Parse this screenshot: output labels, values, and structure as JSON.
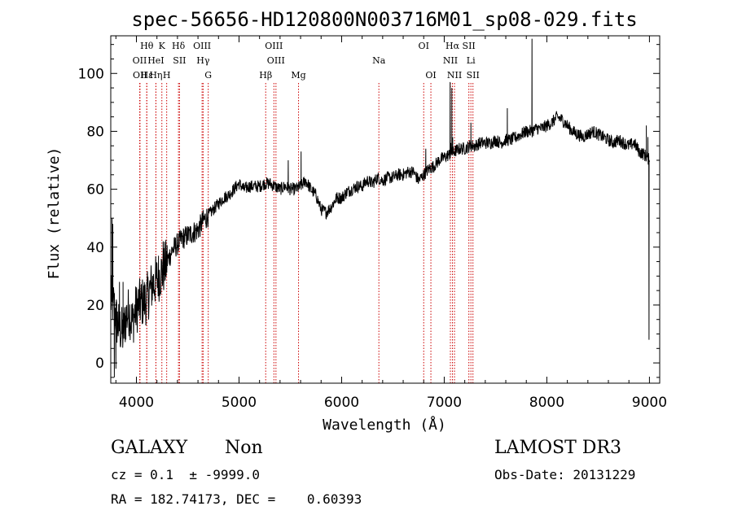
{
  "chart_data": {
    "type": "line",
    "title": "spec-56656-HD120800N003716M01_sp08-029.fits",
    "xlabel": "Wavelength (Å)",
    "ylabel": "Flux (relative)",
    "xlim": [
      3750,
      9100
    ],
    "ylim": [
      -7,
      113
    ],
    "xticks": [
      4000,
      5000,
      6000,
      7000,
      8000,
      9000
    ],
    "yticks": [
      0,
      20,
      40,
      60,
      80,
      100
    ],
    "grid": false,
    "line_color": "#000000",
    "marker_color": "#cc0000",
    "spectrum_anchors": {
      "x": [
        3750,
        3780,
        3810,
        3840,
        3870,
        3900,
        3930,
        3960,
        3990,
        4020,
        4060,
        4100,
        4140,
        4180,
        4220,
        4260,
        4300,
        4350,
        4400,
        4450,
        4500,
        4550,
        4600,
        4650,
        4700,
        4750,
        4800,
        4850,
        4900,
        4950,
        5000,
        5050,
        5100,
        5150,
        5200,
        5250,
        5300,
        5350,
        5400,
        5450,
        5500,
        5550,
        5600,
        5650,
        5700,
        5750,
        5800,
        5850,
        5900,
        5950,
        6000,
        6050,
        6100,
        6150,
        6200,
        6250,
        6300,
        6350,
        6400,
        6450,
        6500,
        6550,
        6600,
        6650,
        6700,
        6750,
        6800,
        6850,
        6900,
        6950,
        7000,
        7050,
        7100,
        7150,
        7200,
        7250,
        7300,
        7350,
        7400,
        7450,
        7500,
        7550,
        7600,
        7650,
        7700,
        7750,
        7800,
        7850,
        7900,
        7950,
        8000,
        8050,
        8100,
        8150,
        8200,
        8250,
        8300,
        8350,
        8400,
        8450,
        8500,
        8550,
        8600,
        8650,
        8700,
        8750,
        8800,
        8850,
        8900,
        8950,
        9000
      ],
      "y": [
        22,
        20,
        14,
        12,
        10,
        16,
        18,
        14,
        18,
        20,
        21,
        22,
        26,
        28,
        30,
        32,
        35,
        39,
        41,
        43,
        44,
        45,
        46,
        49,
        51,
        53,
        55,
        57,
        58,
        60,
        62,
        60,
        61,
        61,
        61,
        62,
        62,
        61,
        60,
        61,
        60,
        60,
        61,
        63,
        60,
        58,
        53,
        52,
        54,
        57,
        57,
        59,
        60,
        61,
        61,
        63,
        62,
        64,
        63,
        64,
        64,
        65,
        65,
        66,
        66,
        63,
        65,
        67,
        68,
        70,
        71,
        72,
        73,
        74,
        74,
        75,
        75,
        76,
        76,
        76,
        77,
        76,
        77,
        77,
        78,
        79,
        80,
        80,
        81,
        81,
        82,
        83,
        85,
        84,
        82,
        80,
        79,
        78,
        79,
        80,
        79,
        78,
        77,
        76,
        77,
        76,
        75,
        76,
        73,
        72,
        70
      ]
    },
    "spectrum_spikes": [
      {
        "x": 3762,
        "y": 50
      },
      {
        "x": 3770,
        "y": 48
      },
      {
        "x": 3785,
        "y": -5
      },
      {
        "x": 3800,
        "y": -2
      },
      {
        "x": 3835,
        "y": 28
      },
      {
        "x": 3870,
        "y": 28
      },
      {
        "x": 4215,
        "y": 37
      },
      {
        "x": 4260,
        "y": 42
      },
      {
        "x": 5605,
        "y": 73
      },
      {
        "x": 5480,
        "y": 70
      },
      {
        "x": 6820,
        "y": 74
      },
      {
        "x": 7058,
        "y": 97
      },
      {
        "x": 7065,
        "y": 76
      },
      {
        "x": 7074,
        "y": 95
      },
      {
        "x": 7082,
        "y": 78
      },
      {
        "x": 7260,
        "y": 83
      },
      {
        "x": 7615,
        "y": 88
      },
      {
        "x": 7855,
        "y": 112
      },
      {
        "x": 7870,
        "y": 80
      },
      {
        "x": 8970,
        "y": 82
      },
      {
        "x": 8985,
        "y": 78
      },
      {
        "x": 8996,
        "y": 8
      }
    ],
    "line_markers": [
      {
        "x": 4032,
        "label": "OII",
        "row": 2
      },
      {
        "x": 4035,
        "label": "OII",
        "row": 3
      },
      {
        "x": 4101,
        "label": "Hθ",
        "row": 1
      },
      {
        "x": 4101,
        "label": "Hε",
        "row": 3
      },
      {
        "x": 4190,
        "label": "HeI",
        "row": 2
      },
      {
        "x": 4190,
        "label": "Hη",
        "row": 3
      },
      {
        "x": 4248,
        "label": "K",
        "row": 1
      },
      {
        "x": 4295,
        "label": "H",
        "row": 3
      },
      {
        "x": 4410,
        "label": "Hδ",
        "row": 1
      },
      {
        "x": 4420,
        "label": "SII",
        "row": 2
      },
      {
        "x": 4640,
        "label": "OIII",
        "row": 1
      },
      {
        "x": 4650,
        "label": "Hγ",
        "row": 2
      },
      {
        "x": 4700,
        "label": "G",
        "row": 3
      },
      {
        "x": 5260,
        "label": "Hβ",
        "row": 3
      },
      {
        "x": 5340,
        "label": "OIII",
        "row": 1
      },
      {
        "x": 5360,
        "label": "OIII",
        "row": 2
      },
      {
        "x": 5580,
        "label": "Mg",
        "row": 3
      },
      {
        "x": 6363,
        "label": "Na",
        "row": 2
      },
      {
        "x": 6800,
        "label": "OI",
        "row": 1
      },
      {
        "x": 6870,
        "label": "OI",
        "row": 3
      },
      {
        "x": 7080,
        "label": "Hα",
        "row": 1
      },
      {
        "x": 7060,
        "label": "NII",
        "row": 2
      },
      {
        "x": 7100,
        "label": "NII",
        "row": 3
      },
      {
        "x": 7240,
        "label": "SII",
        "row": 1
      },
      {
        "x": 7260,
        "label": "Li",
        "row": 2
      },
      {
        "x": 7280,
        "label": "SII",
        "row": 3
      }
    ]
  },
  "info": {
    "class": "GALAXY",
    "subclass": "Non",
    "survey": "LAMOST DR3",
    "cz": "cz = 0.1  ± -9999.0",
    "obs_date": "Obs-Date: 20131229",
    "coords": "RA = 182.74173, DEC =    0.60393"
  }
}
